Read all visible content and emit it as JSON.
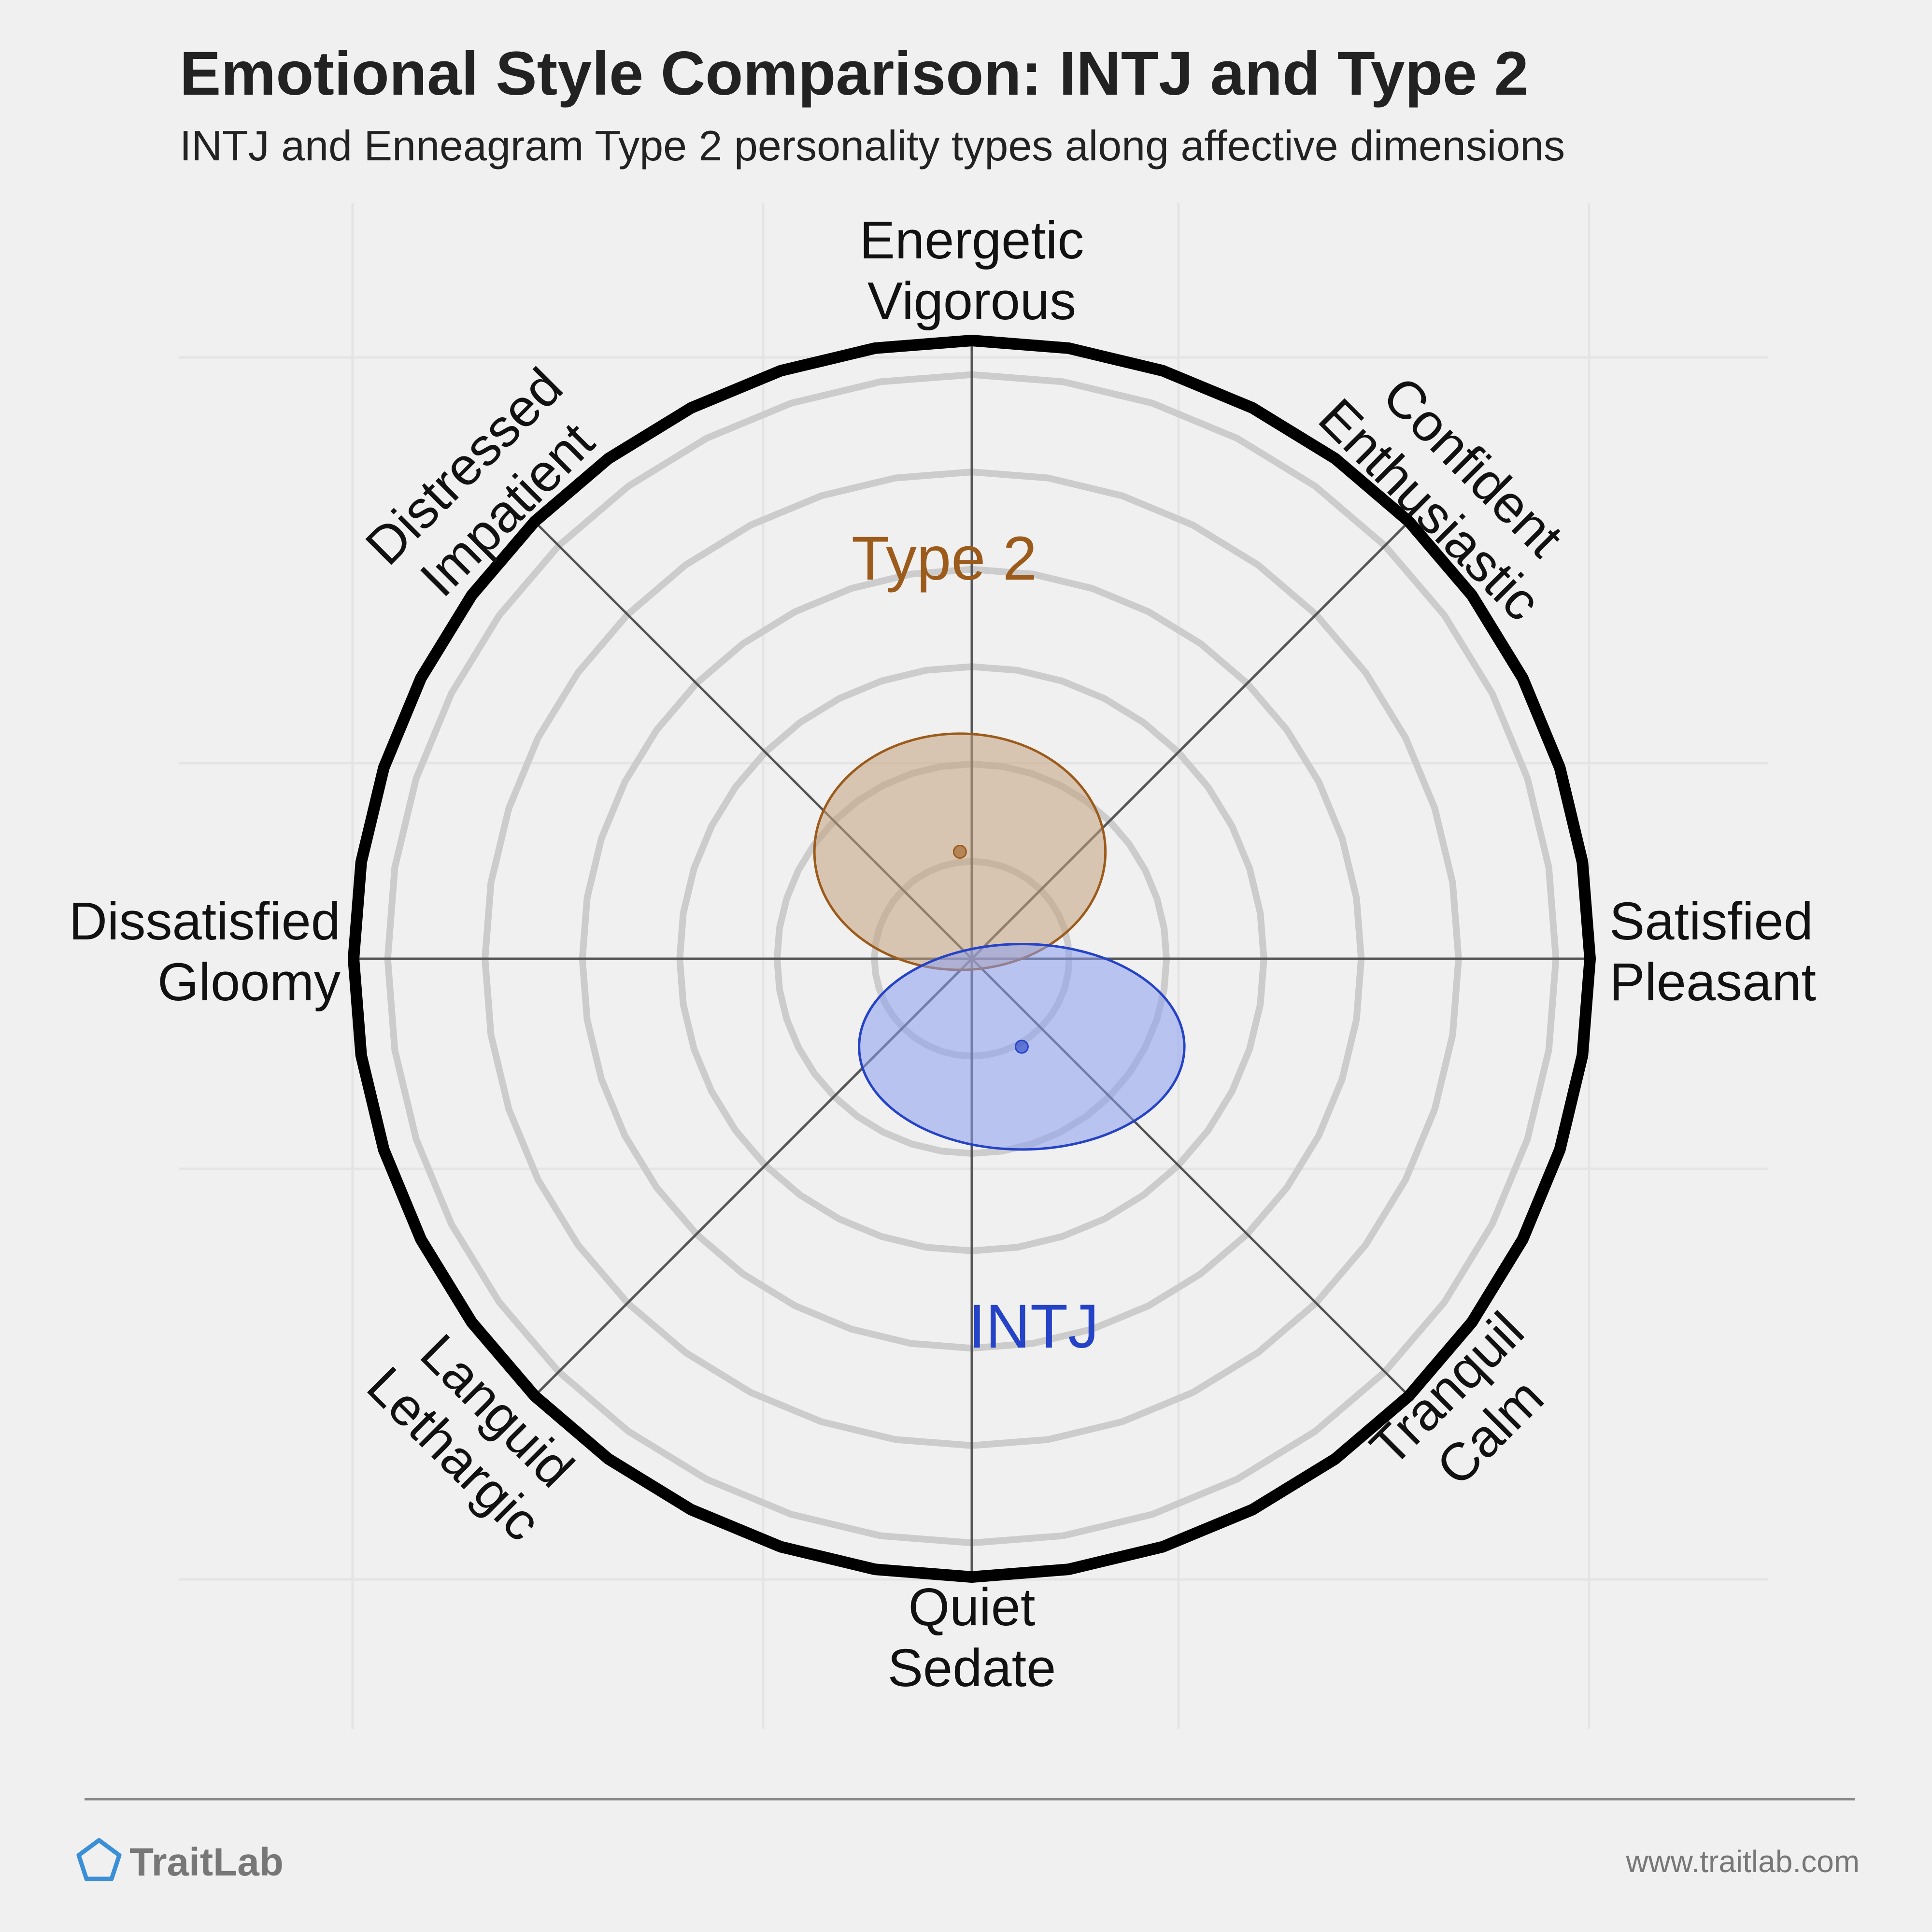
{
  "title": "Emotional Style Comparison: INTJ and Type 2",
  "subtitle": "INTJ and Enneagram Type 2 personality types along affective dimensions",
  "footer": {
    "brand": "TraitLab",
    "brand_icon": "pentagon-logo-icon",
    "url": "www.traitlab.com"
  },
  "colors": {
    "background": "#f0f0f0",
    "ring": "#cccccc",
    "outer_ring": "#000000",
    "axis": "#555555"
  },
  "chart_data": {
    "type": "radar",
    "rings": 6,
    "axes": [
      {
        "id": "top",
        "lines": [
          "Energetic",
          "Vigorous"
        ]
      },
      {
        "id": "top-right",
        "lines": [
          "Confident",
          "Enthusiastic"
        ]
      },
      {
        "id": "right",
        "lines": [
          "Satisfied",
          "Pleasant"
        ]
      },
      {
        "id": "bottom-right",
        "lines": [
          "Tranquil",
          "Calm"
        ]
      },
      {
        "id": "bottom",
        "lines": [
          "Quiet",
          "Sedate"
        ]
      },
      {
        "id": "bottom-left",
        "lines": [
          "Languid",
          "Lethargic"
        ]
      },
      {
        "id": "left",
        "lines": [
          "Dissatisfied",
          "Gloomy"
        ]
      },
      {
        "id": "top-left",
        "lines": [
          "Distressed",
          "Impatient"
        ]
      }
    ],
    "series": [
      {
        "name": "Type 2",
        "color": "#9c5b1b",
        "fill": "#c4a27e",
        "center": {
          "pleasantness": -0.05,
          "energy": 0.45
        },
        "spread": {
          "pleasantness": 0.85,
          "energy": 0.69
        }
      },
      {
        "name": "INTJ",
        "color": "#2543c7",
        "fill": "#8d9ef0",
        "center": {
          "pleasantness": 0.21,
          "energy": -0.37
        },
        "spread": {
          "pleasantness": 0.95,
          "energy": 0.6
        }
      }
    ]
  }
}
